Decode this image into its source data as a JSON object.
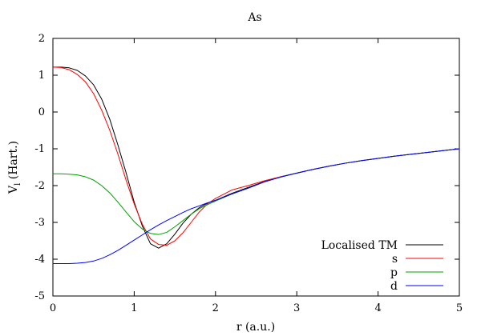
{
  "chart_data": {
    "type": "line",
    "title": "As",
    "xlabel": "r (a.u.)",
    "ylabel_main": "V",
    "ylabel_sub": "l",
    "ylabel_rest": " (Hart.)",
    "xlim": [
      0,
      5
    ],
    "ylim": [
      -5,
      2
    ],
    "xticks": [
      0,
      1,
      2,
      3,
      4,
      5
    ],
    "yticks": [
      -5,
      -4,
      -3,
      -2,
      -1,
      0,
      1,
      2
    ],
    "grid": false,
    "legend_position": "bottom-right",
    "series": [
      {
        "name": "Localised TM",
        "color": "#000000",
        "x": [
          0,
          0.1,
          0.2,
          0.3,
          0.4,
          0.5,
          0.6,
          0.7,
          0.8,
          0.9,
          1.0,
          1.1,
          1.2,
          1.3,
          1.4,
          1.5,
          1.6,
          1.7,
          1.8,
          1.9,
          2.0,
          2.2,
          2.4,
          2.6,
          2.8,
          3.0,
          3.2,
          3.4,
          3.6,
          3.8,
          4.0,
          4.2,
          4.4,
          4.6,
          4.8,
          5.0
        ],
        "y": [
          1.22,
          1.22,
          1.2,
          1.13,
          0.98,
          0.74,
          0.35,
          -0.2,
          -0.9,
          -1.65,
          -2.45,
          -3.1,
          -3.58,
          -3.7,
          -3.58,
          -3.32,
          -3.02,
          -2.78,
          -2.6,
          -2.48,
          -2.4,
          -2.21,
          -2.05,
          -1.89,
          -1.76,
          -1.66,
          -1.56,
          -1.47,
          -1.39,
          -1.32,
          -1.26,
          -1.2,
          -1.15,
          -1.1,
          -1.05,
          -1.0
        ]
      },
      {
        "name": "s",
        "color": "#ff0000",
        "x": [
          0,
          0.1,
          0.2,
          0.3,
          0.4,
          0.5,
          0.6,
          0.7,
          0.8,
          0.9,
          1.0,
          1.1,
          1.2,
          1.3,
          1.4,
          1.5,
          1.6,
          1.7,
          1.8,
          1.9,
          2.0,
          2.2,
          2.4,
          2.6,
          2.8,
          3.0,
          3.2,
          3.4,
          3.6,
          3.8,
          4.0,
          4.2,
          4.4,
          4.6,
          4.8,
          5.0
        ],
        "y": [
          1.22,
          1.21,
          1.15,
          1.02,
          0.82,
          0.5,
          0.05,
          -0.5,
          -1.15,
          -1.85,
          -2.5,
          -3.05,
          -3.45,
          -3.6,
          -3.62,
          -3.5,
          -3.28,
          -3.0,
          -2.72,
          -2.5,
          -2.35,
          -2.12,
          -2.0,
          -1.87,
          -1.76,
          -1.66,
          -1.56,
          -1.47,
          -1.39,
          -1.32,
          -1.26,
          -1.2,
          -1.15,
          -1.1,
          -1.05,
          -1.0
        ]
      },
      {
        "name": "p",
        "color": "#00a000",
        "x": [
          0,
          0.1,
          0.2,
          0.3,
          0.4,
          0.5,
          0.6,
          0.7,
          0.8,
          0.9,
          1.0,
          1.1,
          1.2,
          1.3,
          1.4,
          1.5,
          1.6,
          1.7,
          1.8,
          1.9,
          2.0,
          2.2,
          2.4,
          2.6,
          2.8,
          3.0,
          3.2,
          3.4,
          3.6,
          3.8,
          4.0,
          4.2,
          4.4,
          4.6,
          4.8,
          5.0
        ],
        "y": [
          -1.68,
          -1.68,
          -1.69,
          -1.71,
          -1.76,
          -1.85,
          -2.0,
          -2.2,
          -2.45,
          -2.72,
          -2.98,
          -3.18,
          -3.3,
          -3.33,
          -3.27,
          -3.12,
          -2.95,
          -2.78,
          -2.63,
          -2.52,
          -2.42,
          -2.23,
          -2.07,
          -1.9,
          -1.77,
          -1.66,
          -1.56,
          -1.47,
          -1.39,
          -1.32,
          -1.26,
          -1.2,
          -1.15,
          -1.1,
          -1.05,
          -1.0
        ]
      },
      {
        "name": "d",
        "color": "#0000ff",
        "x": [
          0,
          0.1,
          0.2,
          0.3,
          0.4,
          0.5,
          0.6,
          0.7,
          0.8,
          0.9,
          1.0,
          1.1,
          1.2,
          1.3,
          1.4,
          1.5,
          1.6,
          1.7,
          1.8,
          1.9,
          2.0,
          2.2,
          2.4,
          2.6,
          2.8,
          3.0,
          3.2,
          3.4,
          3.6,
          3.8,
          4.0,
          4.2,
          4.4,
          4.6,
          4.8,
          5.0
        ],
        "y": [
          -4.12,
          -4.12,
          -4.12,
          -4.11,
          -4.09,
          -4.05,
          -3.98,
          -3.88,
          -3.76,
          -3.62,
          -3.48,
          -3.34,
          -3.2,
          -3.07,
          -2.95,
          -2.84,
          -2.73,
          -2.63,
          -2.55,
          -2.47,
          -2.4,
          -2.23,
          -2.07,
          -1.9,
          -1.77,
          -1.66,
          -1.56,
          -1.47,
          -1.39,
          -1.32,
          -1.26,
          -1.2,
          -1.15,
          -1.1,
          -1.05,
          -1.0
        ]
      }
    ]
  }
}
